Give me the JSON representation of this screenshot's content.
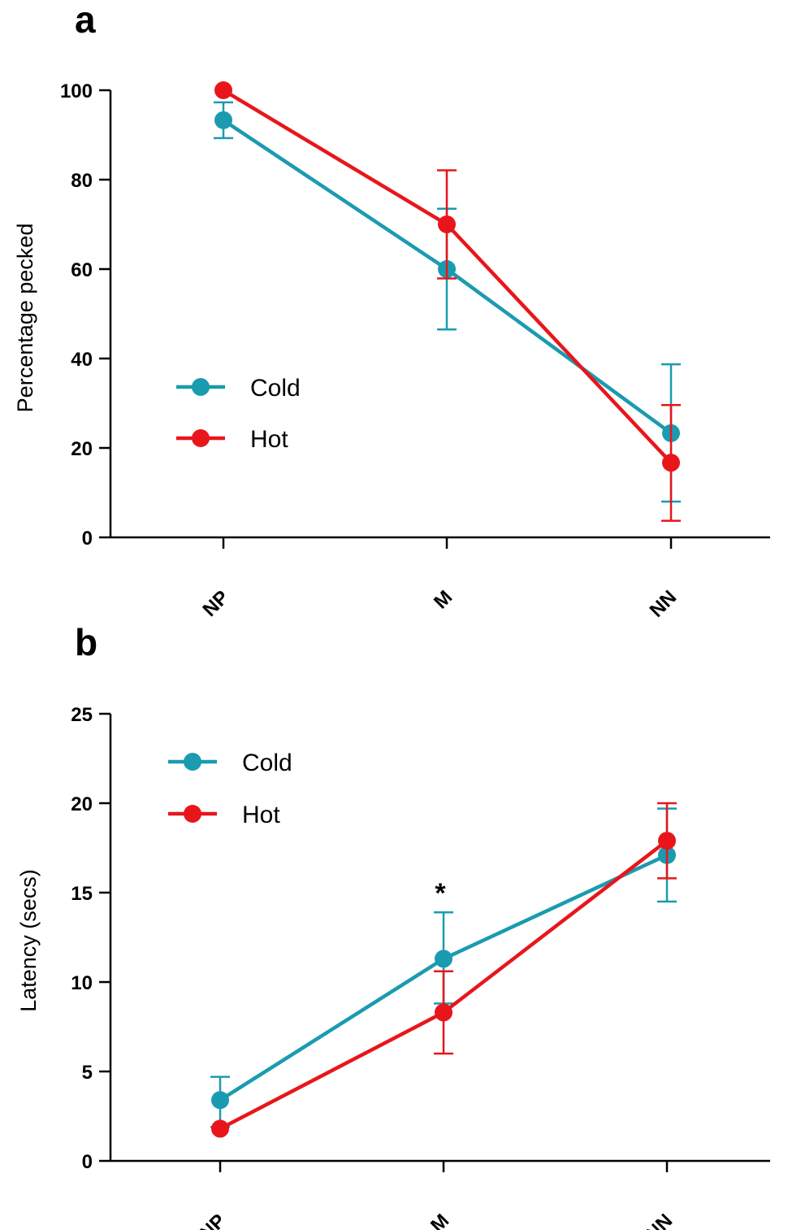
{
  "colors": {
    "cold": "#1a9bb0",
    "hot": "#e8161b",
    "axis": "#000000"
  },
  "chart_data": [
    {
      "type": "line",
      "panel": "a",
      "categories": [
        "NP",
        "M",
        "NN"
      ],
      "ylabel": "Percentage pecked",
      "ylim": [
        0,
        100
      ],
      "yticks": [
        0,
        20,
        40,
        60,
        80,
        100
      ],
      "legend_position": "center-left",
      "series": [
        {
          "name": "Cold",
          "color_key": "cold",
          "values": [
            93.3,
            60,
            23.3
          ],
          "err_low": [
            89.3,
            46.5,
            8
          ],
          "err_high": [
            97.3,
            73.5,
            38.7
          ]
        },
        {
          "name": "Hot",
          "color_key": "hot",
          "values": [
            100,
            70,
            16.7
          ],
          "err_low": [
            100,
            57.9,
            3.7
          ],
          "err_high": [
            100,
            82.1,
            29.6
          ]
        }
      ],
      "annotations": []
    },
    {
      "type": "line",
      "panel": "b",
      "categories": [
        "NP",
        "M",
        "NN"
      ],
      "ylabel": "Latency (secs)",
      "ylim": [
        0,
        25
      ],
      "yticks": [
        0,
        5,
        10,
        15,
        20,
        25
      ],
      "legend_position": "top-left",
      "series": [
        {
          "name": "Cold",
          "color_key": "cold",
          "values": [
            3.4,
            11.3,
            17.1
          ],
          "err_low": [
            1.9,
            8.8,
            14.5
          ],
          "err_high": [
            4.7,
            13.9,
            19.7
          ]
        },
        {
          "name": "Hot",
          "color_key": "hot",
          "values": [
            1.8,
            8.3,
            17.9
          ],
          "err_low": [
            1.8,
            6.0,
            15.8
          ],
          "err_high": [
            1.8,
            10.6,
            20.0
          ]
        }
      ],
      "annotations": [
        {
          "text": "*",
          "category": "M"
        }
      ]
    }
  ]
}
